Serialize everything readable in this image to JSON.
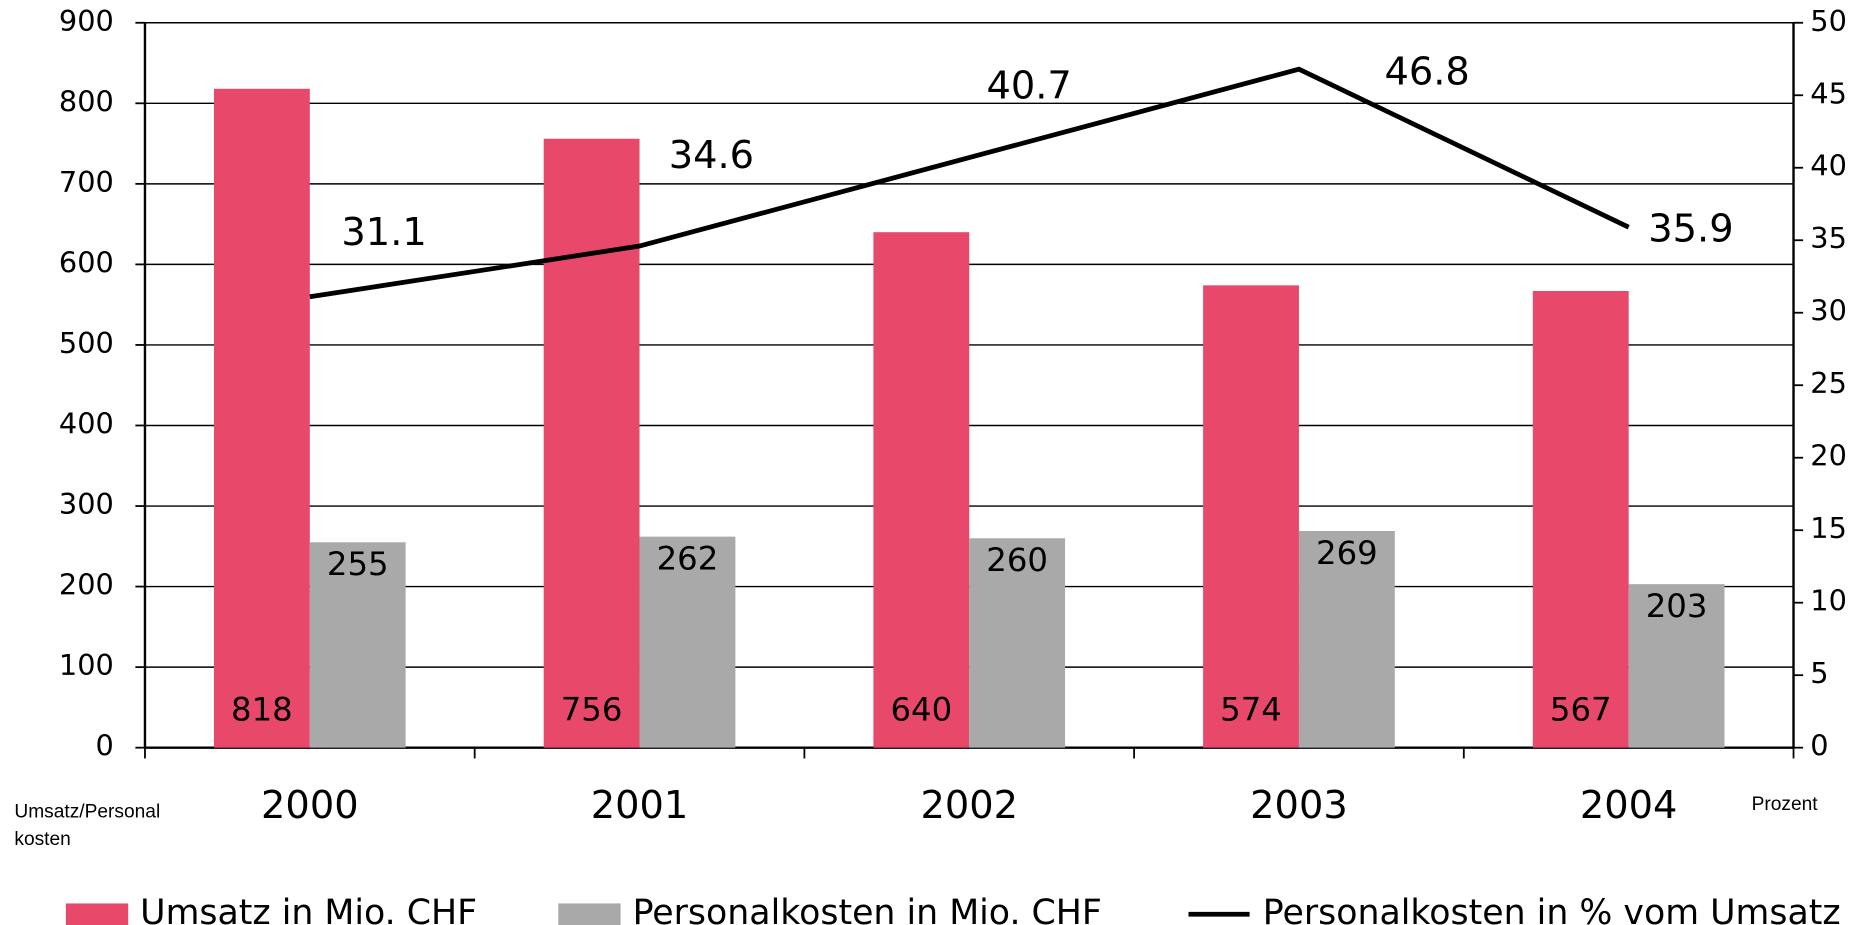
{
  "chart_data": {
    "type": "bar",
    "categories": [
      "2000",
      "2001",
      "2002",
      "2003",
      "2004"
    ],
    "series": [
      {
        "name": "Umsatz in Mio. CHF",
        "color": "#e8496a",
        "values": [
          818,
          756,
          640,
          574,
          567
        ]
      },
      {
        "name": "Personalkosten in Mio. CHF",
        "color": "#a9a9a9",
        "values": [
          255,
          262,
          260,
          269,
          203
        ]
      },
      {
        "name": "Personalkosten in % vom Umsatz",
        "color": "#000000",
        "type": "line",
        "axis": "y2",
        "values": [
          31.1,
          34.6,
          40.7,
          46.8,
          35.9
        ]
      }
    ],
    "y_label": [
      "Umsatz/Personal",
      "kosten"
    ],
    "y2_label": "Prozent",
    "ylim": [
      0,
      900
    ],
    "yticks": [
      0,
      100,
      200,
      300,
      400,
      500,
      600,
      700,
      800,
      900
    ],
    "y2lim": [
      0,
      50
    ],
    "y2ticks": [
      0,
      5,
      10,
      15,
      20,
      25,
      30,
      35,
      40,
      45,
      50
    ],
    "grid": true,
    "legend": "bottom"
  }
}
